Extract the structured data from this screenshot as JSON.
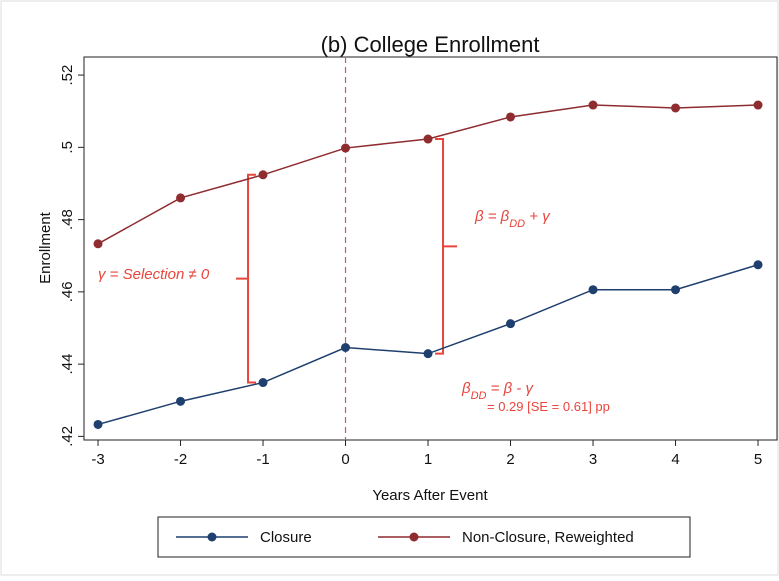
{
  "chart_data": {
    "type": "line",
    "title": "(b) College Enrollment",
    "x_label": "Years After Event",
    "y_label": "Enrollment",
    "x": [
      -3,
      -2,
      -1,
      0,
      1,
      2,
      3,
      4,
      5
    ],
    "series": [
      {
        "name": "Closure",
        "color": "#1f3f6e",
        "values": [
          0.4233,
          0.4297,
          0.4349,
          0.4446,
          0.4429,
          0.4512,
          0.4606,
          0.4606,
          0.4675
        ]
      },
      {
        "name": "Non-Closure, Reweighted",
        "color": "#8e2c2f",
        "values": [
          0.4733,
          0.486,
          0.4924,
          0.4998,
          0.5023,
          0.5084,
          0.5117,
          0.5109,
          0.5117
        ]
      }
    ],
    "xlim": [
      -3.17,
      5.23
    ],
    "ylim": [
      0.419,
      0.525
    ],
    "xticks": [
      -3,
      -2,
      -1,
      0,
      1,
      2,
      3,
      4,
      5
    ],
    "yticks": [
      {
        "value": 0.42,
        "label": ".42"
      },
      {
        "value": 0.44,
        "label": ".44"
      },
      {
        "value": 0.46,
        "label": ".46"
      },
      {
        "value": 0.48,
        "label": ".48"
      },
      {
        "value": 0.5,
        "label": ".5"
      },
      {
        "value": 0.52,
        "label": ".52"
      }
    ],
    "vline": 0,
    "vline_color": "#c8557a",
    "annotation_color": "#e8453c",
    "annotations": [
      {
        "text": [
          "γ = Selection ≠ 0"
        ]
      },
      {
        "text": [
          "β = β",
          "DD",
          " + γ"
        ]
      },
      {
        "text": [
          "β",
          "DD",
          " = β - γ"
        ]
      },
      {
        "text": [
          "= 0.29 [SE = 0.61] pp"
        ]
      }
    ]
  }
}
